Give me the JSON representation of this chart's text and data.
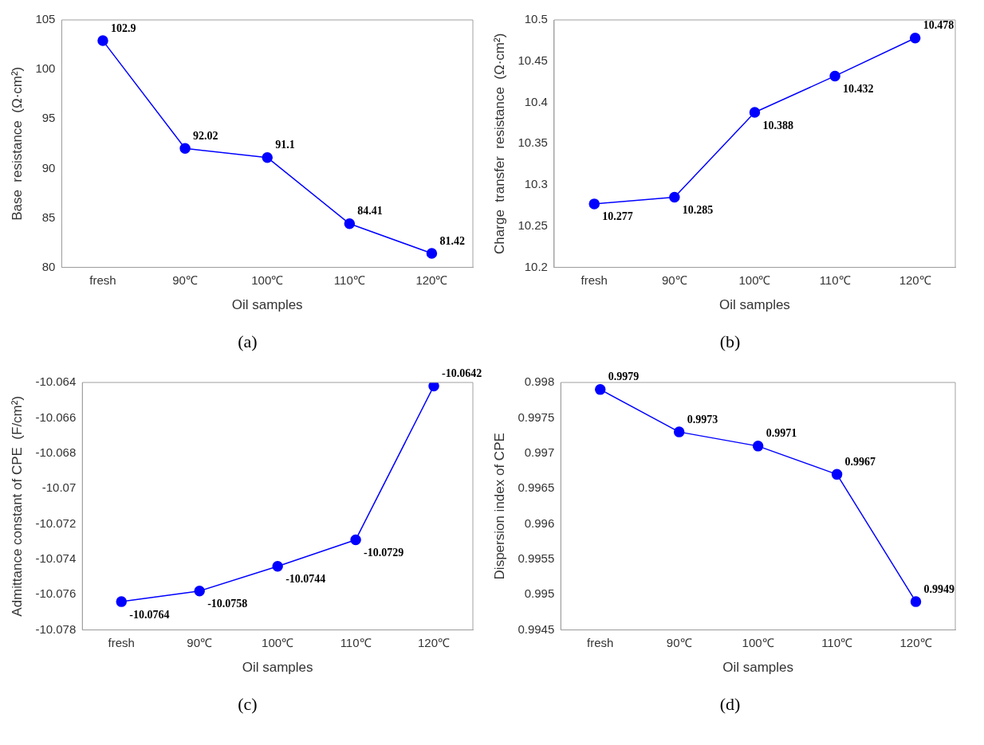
{
  "chart_data": [
    {
      "type": "line",
      "xlabel": "Oil samples",
      "ylabel": "Base  resistance  (Ω·cm²)",
      "categories": [
        "fresh",
        "90℃",
        "100℃",
        "110℃",
        "120℃"
      ],
      "series": [
        {
          "color": "#0000ff",
          "values": [
            102.9,
            92.02,
            91.1,
            84.41,
            81.42
          ]
        }
      ],
      "ylim": [
        80,
        105
      ],
      "yticks": [
        80,
        85,
        90,
        95,
        100,
        105
      ],
      "data_labels": true,
      "marker": "circle",
      "line_style": "solid",
      "annotations": [
        "(a)"
      ]
    },
    {
      "type": "line",
      "xlabel": "Oil samples",
      "ylabel": "Charge  transfer  resistance  (Ω·cm²)",
      "categories": [
        "fresh",
        "90℃",
        "100℃",
        "110℃",
        "120℃"
      ],
      "series": [
        {
          "color": "#0000ff",
          "values": [
            10.277,
            10.285,
            10.388,
            10.432,
            10.478
          ]
        }
      ],
      "ylim": [
        10.2,
        10.5
      ],
      "yticks": [
        10.2,
        10.25,
        10.3,
        10.35,
        10.4,
        10.45,
        10.5
      ],
      "data_labels": true,
      "marker": "circle",
      "line_style": "solid",
      "annotations": [
        "(b)"
      ]
    },
    {
      "type": "line",
      "xlabel": "Oil samples",
      "ylabel": "Admittance constant of CPE  (F/cm²)",
      "categories": [
        "fresh",
        "90℃",
        "100℃",
        "110℃",
        "120℃"
      ],
      "series": [
        {
          "color": "#0000ff",
          "values": [
            -10.0764,
            -10.0758,
            -10.0744,
            -10.0729,
            -10.0642
          ]
        }
      ],
      "ylim": [
        -10.078,
        -10.064
      ],
      "yticks": [
        -10.078,
        -10.076,
        -10.074,
        -10.072,
        -10.07,
        -10.068,
        -10.066,
        -10.064
      ],
      "data_labels": true,
      "marker": "circle",
      "line_style": "solid",
      "annotations": [
        "(c)"
      ]
    },
    {
      "type": "line",
      "xlabel": "Oil samples",
      "ylabel": "Dispersion index of CPE",
      "categories": [
        "fresh",
        "90℃",
        "100℃",
        "110℃",
        "120℃"
      ],
      "series": [
        {
          "color": "#0000ff",
          "values": [
            0.9979,
            0.9973,
            0.9971,
            0.9967,
            0.9949
          ]
        }
      ],
      "ylim": [
        0.9945,
        0.998
      ],
      "yticks": [
        0.9945,
        0.995,
        0.9955,
        0.996,
        0.9965,
        0.997,
        0.9975,
        0.998
      ],
      "data_labels": true,
      "marker": "circle",
      "line_style": "solid",
      "annotations": [
        "(d)"
      ]
    }
  ]
}
